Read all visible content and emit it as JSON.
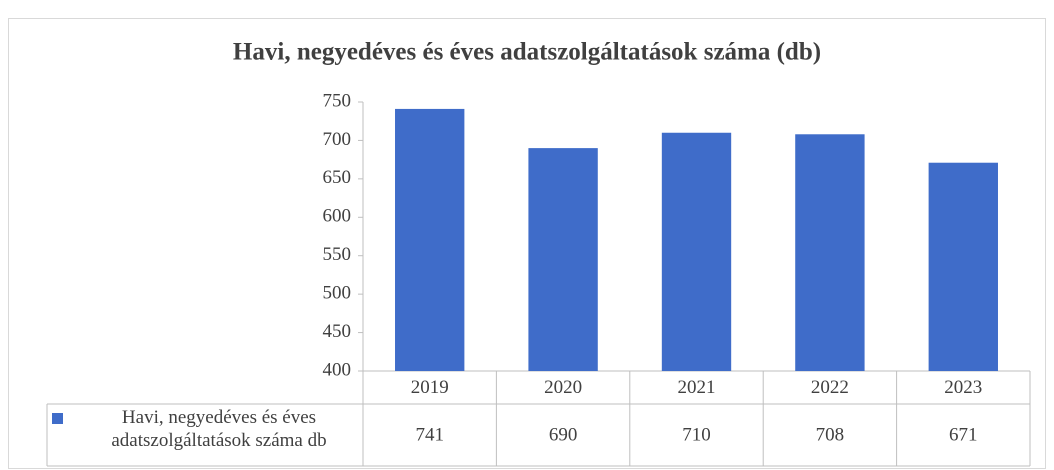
{
  "chart_data": {
    "type": "bar",
    "title": "Havi, negyedéves és éves adatszolgáltatások száma (db)",
    "categories": [
      "2019",
      "2020",
      "2021",
      "2022",
      "2023"
    ],
    "series": [
      {
        "name": "Havi, negyedéves és éves adatszolgáltatások száma db",
        "color": "#3f6cc9",
        "values": [
          741,
          690,
          710,
          708,
          671
        ]
      }
    ],
    "ylim": [
      400,
      750
    ],
    "yticks": [
      400,
      450,
      500,
      550,
      600,
      650,
      700,
      750
    ],
    "grid": false
  }
}
